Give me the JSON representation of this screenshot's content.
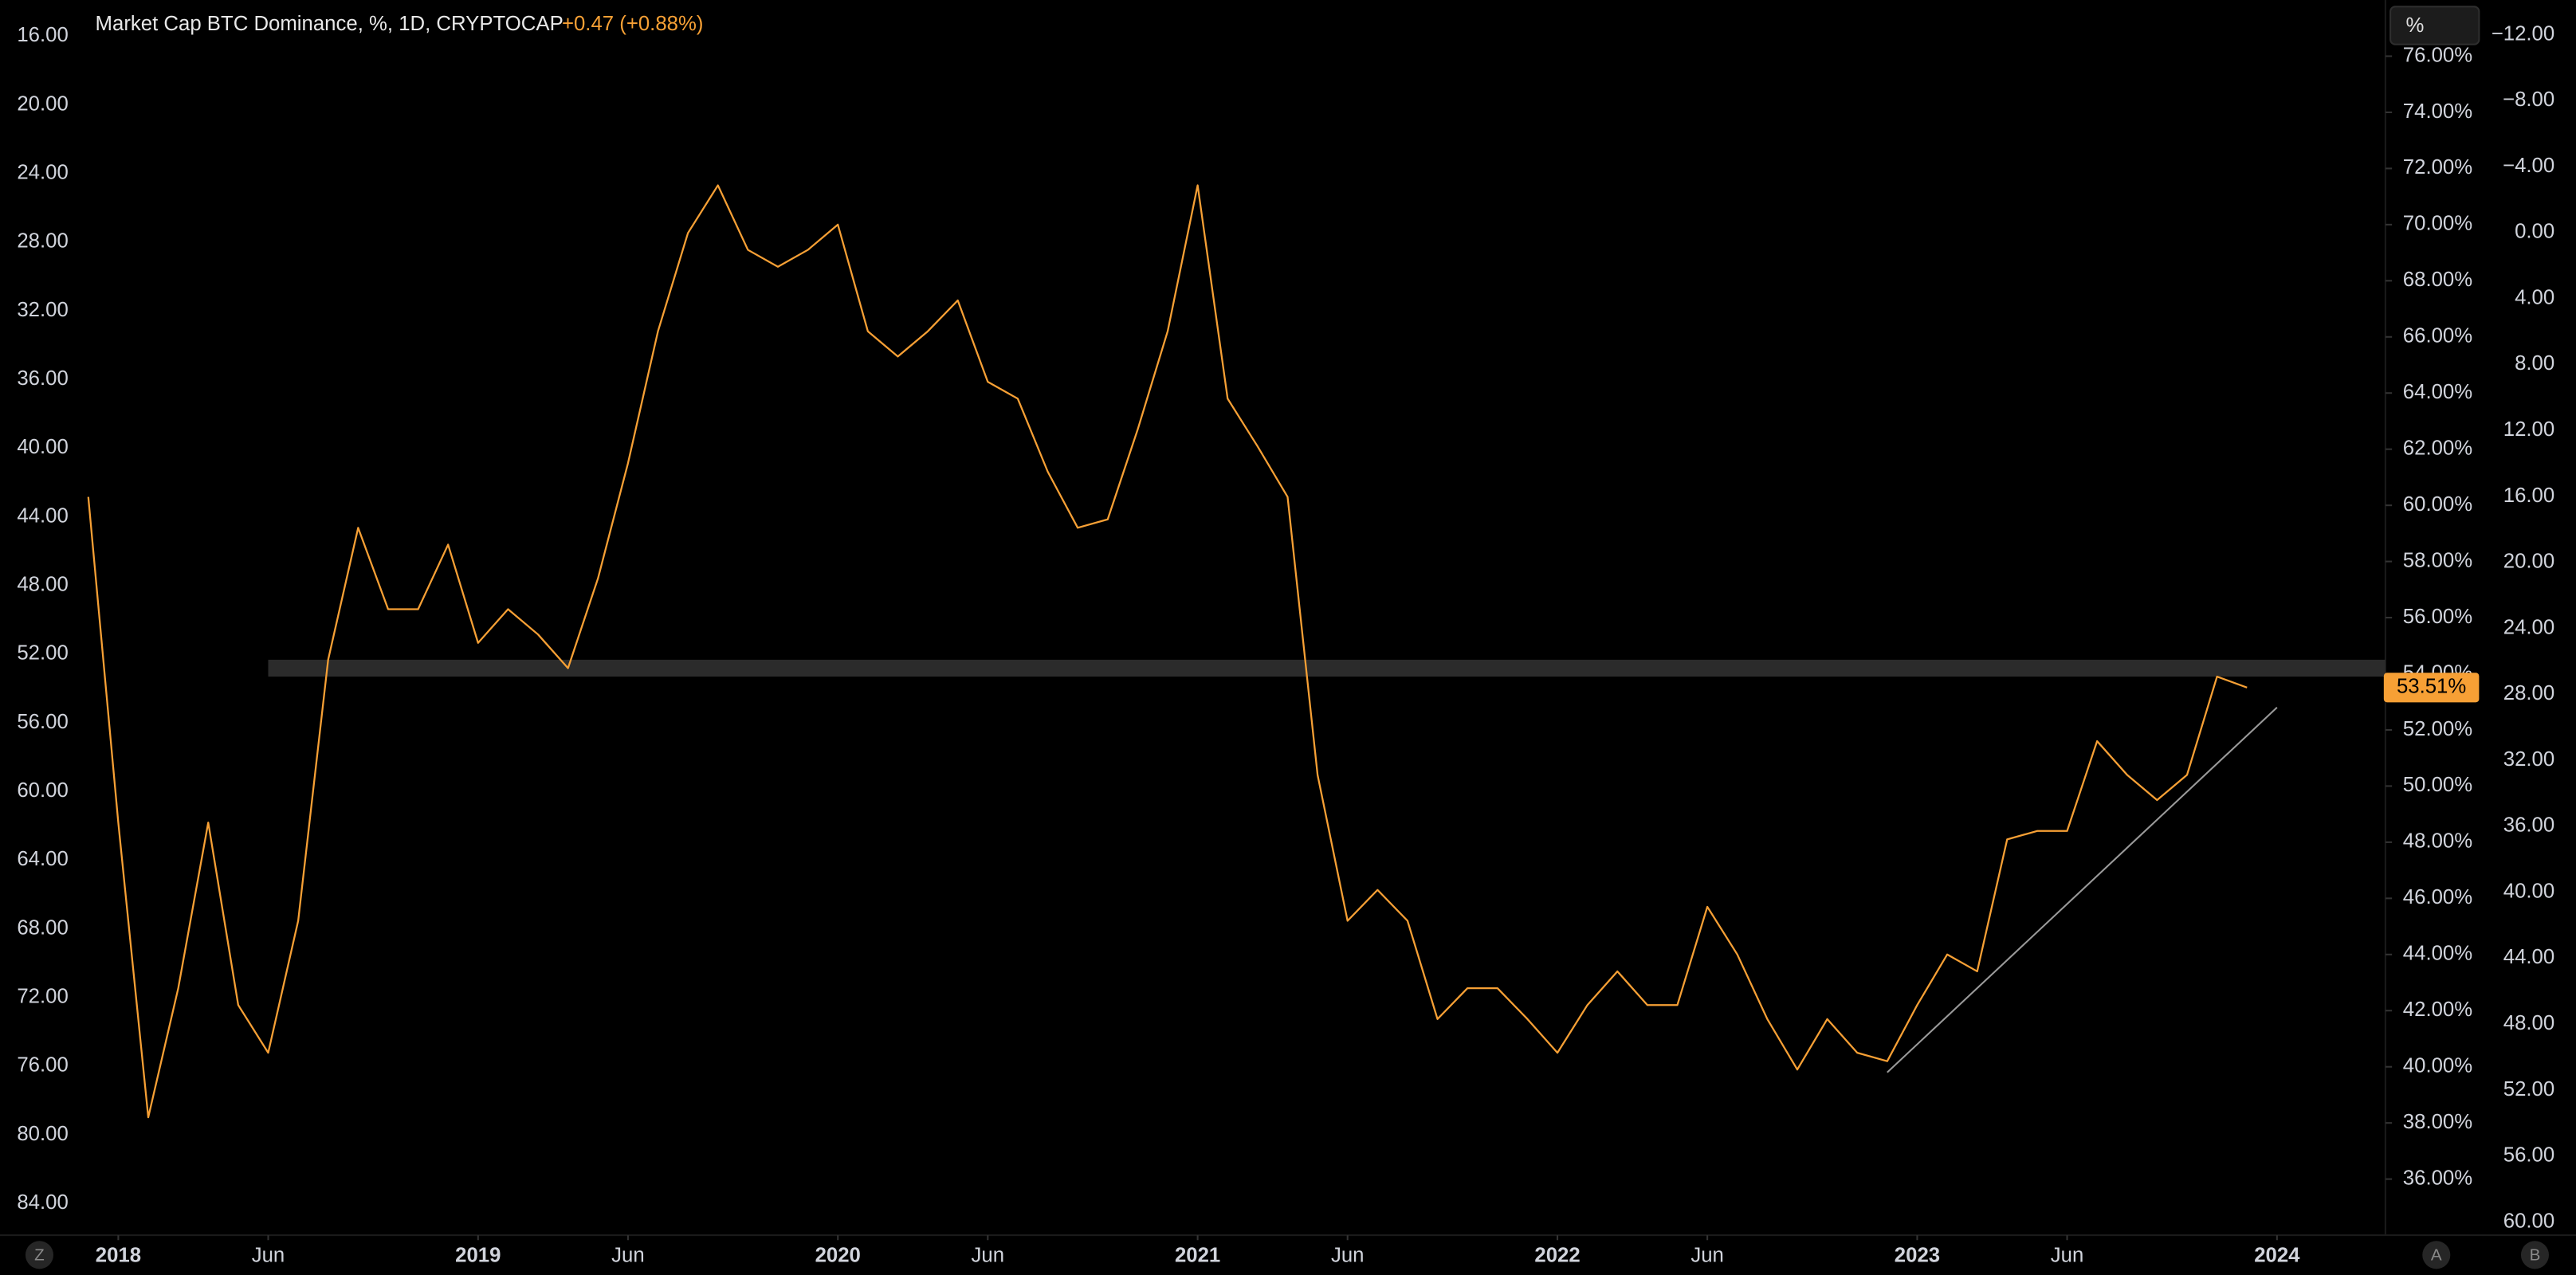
{
  "chart_data": {
    "type": "line",
    "title": "Market Cap BTC Dominance, %, 1D, CRYPTOCAP",
    "change": "+0.47 (+0.88%)",
    "color": "#f7a035",
    "x": [
      "2017-12",
      "2018-01",
      "2018-02",
      "2018-03",
      "2018-04",
      "2018-05",
      "2018-06",
      "2018-07",
      "2018-08",
      "2018-09",
      "2018-10",
      "2018-11",
      "2018-12",
      "2019-01",
      "2019-02",
      "2019-03",
      "2019-04",
      "2019-05",
      "2019-06",
      "2019-07",
      "2019-08",
      "2019-09",
      "2019-10",
      "2019-11",
      "2019-12",
      "2020-01",
      "2020-02",
      "2020-03",
      "2020-04",
      "2020-05",
      "2020-06",
      "2020-07",
      "2020-08",
      "2020-09",
      "2020-10",
      "2020-11",
      "2020-12",
      "2021-01",
      "2021-02",
      "2021-03",
      "2021-04",
      "2021-05",
      "2021-06",
      "2021-07",
      "2021-08",
      "2021-09",
      "2021-10",
      "2021-11",
      "2021-12",
      "2022-01",
      "2022-02",
      "2022-03",
      "2022-04",
      "2022-05",
      "2022-06",
      "2022-07",
      "2022-08",
      "2022-09",
      "2022-10",
      "2022-11",
      "2022-12",
      "2023-01",
      "2023-02",
      "2023-03",
      "2023-04",
      "2023-05",
      "2023-06",
      "2023-07",
      "2023-08",
      "2023-09",
      "2023-10",
      "2023-11",
      "2023-12"
    ],
    "values": [
      60.3,
      48.7,
      38.2,
      42.8,
      48.7,
      42.2,
      40.5,
      45.2,
      54.5,
      59.2,
      56.3,
      56.3,
      58.6,
      55.1,
      56.3,
      55.4,
      54.2,
      57.4,
      61.5,
      66.2,
      69.7,
      71.4,
      69.1,
      68.5,
      69.1,
      70.0,
      66.2,
      65.3,
      66.2,
      67.3,
      64.4,
      63.8,
      61.2,
      59.2,
      59.5,
      62.7,
      66.2,
      71.4,
      63.8,
      62.1,
      60.3,
      50.4,
      45.2,
      46.3,
      45.2,
      41.7,
      42.8,
      42.8,
      41.7,
      40.5,
      42.2,
      43.4,
      42.2,
      42.2,
      45.7,
      44.0,
      41.7,
      39.9,
      41.7,
      40.5,
      40.2,
      42.2,
      44.0,
      43.4,
      48.1,
      48.4,
      48.4,
      51.6,
      50.4,
      49.5,
      50.4,
      53.9,
      53.51
    ],
    "last_value_label": "53.51%",
    "xlim": [
      "2017-11",
      "2024-05"
    ],
    "xticks": [
      {
        "value": "2018-01",
        "label": "2018"
      },
      {
        "value": "2018-06",
        "label": "Jun"
      },
      {
        "value": "2019-01",
        "label": "2019"
      },
      {
        "value": "2019-06",
        "label": "Jun"
      },
      {
        "value": "2020-01",
        "label": "2020"
      },
      {
        "value": "2020-06",
        "label": "Jun"
      },
      {
        "value": "2021-01",
        "label": "2021"
      },
      {
        "value": "2021-06",
        "label": "Jun"
      },
      {
        "value": "2022-01",
        "label": "2022"
      },
      {
        "value": "2022-06",
        "label": "Jun"
      },
      {
        "value": "2023-01",
        "label": "2023"
      },
      {
        "value": "2023-06",
        "label": "Jun"
      },
      {
        "value": "2024-01",
        "label": "2024"
      }
    ],
    "ylim": [
      34,
      78
    ],
    "yticks": [
      {
        "value": 36,
        "label": "36.00%"
      },
      {
        "value": 38,
        "label": "38.00%"
      },
      {
        "value": 40,
        "label": "40.00%"
      },
      {
        "value": 42,
        "label": "42.00%"
      },
      {
        "value": 44,
        "label": "44.00%"
      },
      {
        "value": 46,
        "label": "46.00%"
      },
      {
        "value": 48,
        "label": "48.00%"
      },
      {
        "value": 50,
        "label": "50.00%"
      },
      {
        "value": 52,
        "label": "52.00%"
      },
      {
        "value": 54,
        "label": "54.00%"
      },
      {
        "value": 56,
        "label": "56.00%"
      },
      {
        "value": 58,
        "label": "58.00%"
      },
      {
        "value": 60,
        "label": "60.00%"
      },
      {
        "value": 62,
        "label": "62.00%"
      },
      {
        "value": 64,
        "label": "64.00%"
      },
      {
        "value": 66,
        "label": "66.00%"
      },
      {
        "value": 68,
        "label": "68.00%"
      },
      {
        "value": 70,
        "label": "70.00%"
      },
      {
        "value": 72,
        "label": "72.00%"
      },
      {
        "value": 74,
        "label": "74.00%"
      },
      {
        "value": 76,
        "label": "76.00%"
      }
    ],
    "left_axis": {
      "ylim": [
        85.85,
        13.9
      ],
      "yticks": [
        {
          "value": 16,
          "label": "16.00"
        },
        {
          "value": 20,
          "label": "20.00"
        },
        {
          "value": 24,
          "label": "24.00"
        },
        {
          "value": 28,
          "label": "28.00"
        },
        {
          "value": 32,
          "label": "32.00"
        },
        {
          "value": 36,
          "label": "36.00"
        },
        {
          "value": 40,
          "label": "40.00"
        },
        {
          "value": 44,
          "label": "44.00"
        },
        {
          "value": 48,
          "label": "48.00"
        },
        {
          "value": 52,
          "label": "52.00"
        },
        {
          "value": 56,
          "label": "56.00"
        },
        {
          "value": 60,
          "label": "60.00"
        },
        {
          "value": 64,
          "label": "64.00"
        },
        {
          "value": 68,
          "label": "68.00"
        },
        {
          "value": 72,
          "label": "72.00"
        },
        {
          "value": 76,
          "label": "76.00"
        },
        {
          "value": 80,
          "label": "80.00"
        },
        {
          "value": 84,
          "label": "84.00"
        }
      ]
    },
    "right_axis_2": {
      "ylim": [
        60.8,
        -14.1
      ],
      "yticks": [
        {
          "value": -12,
          "label": "−12.00"
        },
        {
          "value": -8,
          "label": "−8.00"
        },
        {
          "value": -4,
          "label": "−4.00"
        },
        {
          "value": 0,
          "label": "0.00"
        },
        {
          "value": 4,
          "label": "4.00"
        },
        {
          "value": 8,
          "label": "8.00"
        },
        {
          "value": 12,
          "label": "12.00"
        },
        {
          "value": 16,
          "label": "16.00"
        },
        {
          "value": 20,
          "label": "20.00"
        },
        {
          "value": 24,
          "label": "24.00"
        },
        {
          "value": 28,
          "label": "28.00"
        },
        {
          "value": 32,
          "label": "32.00"
        },
        {
          "value": 36,
          "label": "36.00"
        },
        {
          "value": 40,
          "label": "40.00"
        },
        {
          "value": 44,
          "label": "44.00"
        },
        {
          "value": 48,
          "label": "48.00"
        },
        {
          "value": 52,
          "label": "52.00"
        },
        {
          "value": 56,
          "label": "56.00"
        },
        {
          "value": 60,
          "label": "60.00"
        }
      ]
    },
    "zone": {
      "x": "2018-06",
      "ylim": [
        53.9,
        54.5
      ]
    },
    "trendline": {
      "x": [
        "2022-12",
        "2024-01"
      ],
      "y": [
        39.8,
        52.8
      ]
    }
  },
  "ui": {
    "scale_button": "%",
    "buttons": [
      "Z",
      "A",
      "B"
    ]
  }
}
